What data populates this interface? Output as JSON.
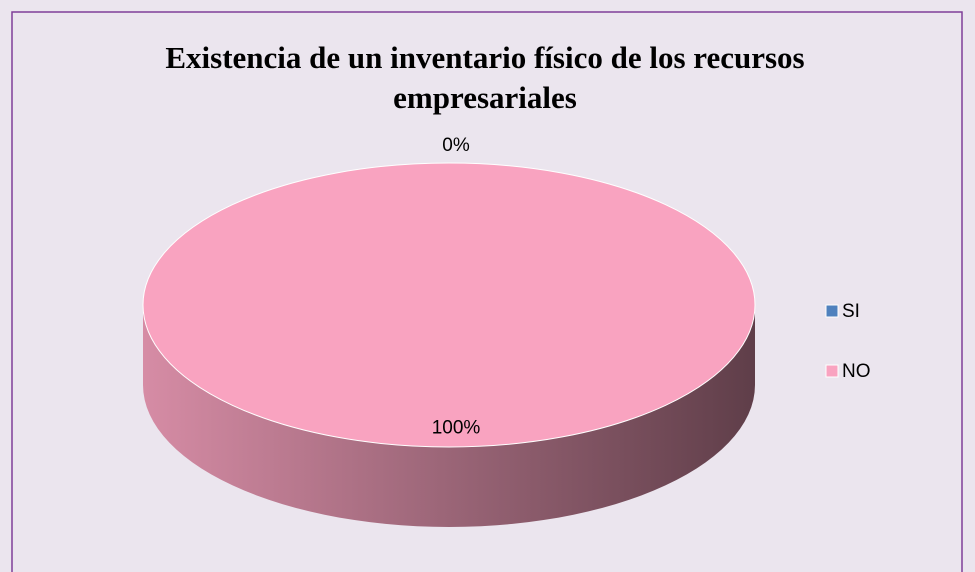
{
  "chart_data": {
    "type": "pie",
    "title": "Existencia de un inventario físico de los recursos empresariales",
    "categories": [
      "SI",
      "NO"
    ],
    "values": [
      0,
      100
    ],
    "value_labels": [
      "0%",
      "100%"
    ],
    "colors": [
      "#4f81bd",
      "#f9a3c0"
    ],
    "legend": "right"
  }
}
